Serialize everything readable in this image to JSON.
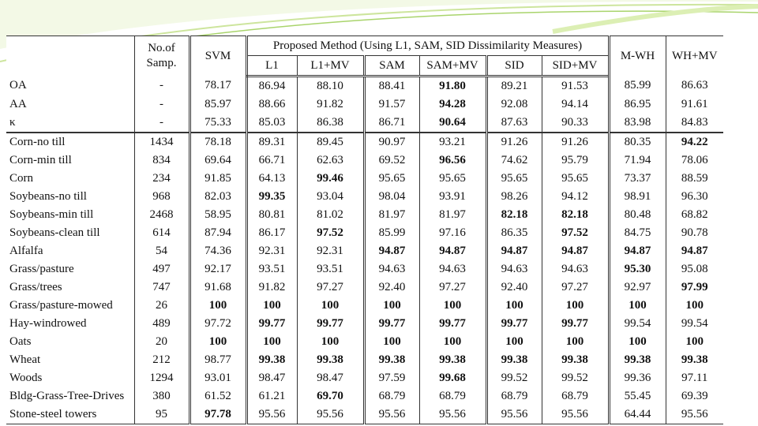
{
  "table": {
    "headers": {
      "samples_line1": "No.of",
      "samples_line2": "Samp.",
      "svm": "SVM",
      "proposed": "Proposed Method (Using L1, SAM, SID Dissimilarity Measures)",
      "sub": [
        "L1",
        "L1+MV",
        "SAM",
        "SAM+MV",
        "SID",
        "SID+MV"
      ],
      "mwh": "M-WH",
      "whmv": "WH+MV"
    },
    "rows": [
      {
        "name": "OA",
        "samples": "-",
        "values": [
          "78.17",
          "86.94",
          "88.10",
          "88.41",
          "91.80",
          "89.21",
          "91.53",
          "85.99",
          "86.63"
        ],
        "bold": [
          4
        ]
      },
      {
        "name": "AA",
        "samples": "-",
        "values": [
          "85.97",
          "88.66",
          "91.82",
          "91.57",
          "94.28",
          "92.08",
          "94.14",
          "86.95",
          "91.61"
        ],
        "bold": [
          4
        ]
      },
      {
        "name": "κ",
        "samples": "-",
        "values": [
          "75.33",
          "85.03",
          "86.38",
          "86.71",
          "90.64",
          "87.63",
          "90.33",
          "83.98",
          "84.83"
        ],
        "bold": [
          4
        ]
      },
      {
        "name": "Corn-no till",
        "samples": "1434",
        "values": [
          "78.18",
          "89.31",
          "89.45",
          "90.97",
          "93.21",
          "91.26",
          "91.26",
          "80.35",
          "94.22"
        ],
        "bold": [
          8
        ]
      },
      {
        "name": "Corn-min till",
        "samples": "834",
        "values": [
          "69.64",
          "66.71",
          "62.63",
          "69.52",
          "96.56",
          "74.62",
          "95.79",
          "71.94",
          "78.06"
        ],
        "bold": [
          4
        ]
      },
      {
        "name": "Corn",
        "samples": "234",
        "values": [
          "91.85",
          "64.13",
          "99.46",
          "95.65",
          "95.65",
          "95.65",
          "95.65",
          "73.37",
          "88.59"
        ],
        "bold": [
          2
        ]
      },
      {
        "name": "Soybeans-no till",
        "samples": "968",
        "values": [
          "82.03",
          "99.35",
          "93.04",
          "98.04",
          "93.91",
          "98.26",
          "94.12",
          "98.91",
          "96.30"
        ],
        "bold": [
          1
        ]
      },
      {
        "name": "Soybeans-min till",
        "samples": "2468",
        "values": [
          "58.95",
          "80.81",
          "81.02",
          "81.97",
          "81.97",
          "82.18",
          "82.18",
          "80.48",
          "68.82"
        ],
        "bold": [
          5,
          6
        ]
      },
      {
        "name": "Soybeans-clean till",
        "samples": "614",
        "values": [
          "87.94",
          "86.17",
          "97.52",
          "85.99",
          "97.16",
          "86.35",
          "97.52",
          "84.75",
          "90.78"
        ],
        "bold": [
          2,
          6
        ]
      },
      {
        "name": "Alfalfa",
        "samples": "54",
        "values": [
          "74.36",
          "92.31",
          "92.31",
          "94.87",
          "94.87",
          "94.87",
          "94.87",
          "94.87",
          "94.87"
        ],
        "bold": [
          3,
          4,
          5,
          6,
          7,
          8
        ]
      },
      {
        "name": "Grass/pasture",
        "samples": "497",
        "values": [
          "92.17",
          "93.51",
          "93.51",
          "94.63",
          "94.63",
          "94.63",
          "94.63",
          "95.30",
          "95.08"
        ],
        "bold": [
          7
        ]
      },
      {
        "name": "Grass/trees",
        "samples": "747",
        "values": [
          "91.68",
          "91.82",
          "97.27",
          "92.40",
          "97.27",
          "92.40",
          "97.27",
          "92.97",
          "97.99"
        ],
        "bold": [
          8
        ]
      },
      {
        "name": "Grass/pasture-mowed",
        "samples": "26",
        "values": [
          "100",
          "100",
          "100",
          "100",
          "100",
          "100",
          "100",
          "100",
          "100"
        ],
        "bold": [
          0,
          1,
          2,
          3,
          4,
          5,
          6,
          7,
          8
        ]
      },
      {
        "name": "Hay-windrowed",
        "samples": "489",
        "values": [
          "97.72",
          "99.77",
          "99.77",
          "99.77",
          "99.77",
          "99.77",
          "99.77",
          "99.54",
          "99.54"
        ],
        "bold": [
          1,
          2,
          3,
          4,
          5,
          6
        ]
      },
      {
        "name": "Oats",
        "samples": "20",
        "values": [
          "100",
          "100",
          "100",
          "100",
          "100",
          "100",
          "100",
          "100",
          "100"
        ],
        "bold": [
          0,
          1,
          2,
          3,
          4,
          5,
          6,
          7,
          8
        ]
      },
      {
        "name": "Wheat",
        "samples": "212",
        "values": [
          "98.77",
          "99.38",
          "99.38",
          "99.38",
          "99.38",
          "99.38",
          "99.38",
          "99.38",
          "99.38"
        ],
        "bold": [
          1,
          2,
          3,
          4,
          5,
          6,
          7,
          8
        ]
      },
      {
        "name": "Woods",
        "samples": "1294",
        "values": [
          "93.01",
          "98.47",
          "98.47",
          "97.59",
          "99.68",
          "99.52",
          "99.52",
          "99.36",
          "97.11"
        ],
        "bold": [
          4
        ]
      },
      {
        "name": "Bldg-Grass-Tree-Drives",
        "samples": "380",
        "values": [
          "61.52",
          "61.21",
          "69.70",
          "68.79",
          "68.79",
          "68.79",
          "68.79",
          "55.45",
          "69.39"
        ],
        "bold": [
          2
        ]
      },
      {
        "name": "Stone-steel towers",
        "samples": "95",
        "values": [
          "97.78",
          "95.56",
          "95.56",
          "95.56",
          "95.56",
          "95.56",
          "95.56",
          "64.44",
          "95.56"
        ],
        "bold": [
          0
        ]
      }
    ]
  },
  "colors": {
    "swoosh_light": "#dcefb4",
    "swoosh_mid": "#a9d46c",
    "line": "#333333"
  }
}
